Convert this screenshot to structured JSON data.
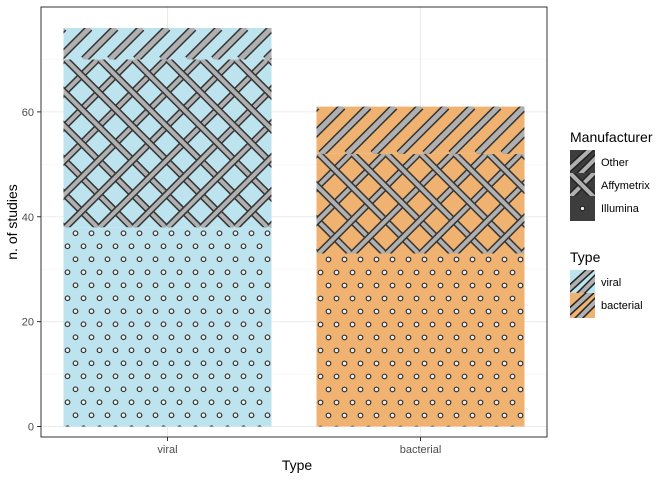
{
  "chart_data": {
    "type": "bar",
    "stacked": true,
    "xlabel": "Type",
    "ylabel": "n. of studies",
    "categories": [
      "viral",
      "bacterial"
    ],
    "series": [
      {
        "name": "Illumina",
        "values": [
          38,
          33
        ],
        "pattern": "dots"
      },
      {
        "name": "Affymetrix",
        "values": [
          32,
          19
        ],
        "pattern": "crosshatch"
      },
      {
        "name": "Other",
        "values": [
          6,
          9
        ],
        "pattern": "stripes"
      }
    ],
    "ylim": [
      -2,
      80
    ],
    "yticks": [
      0,
      20,
      40,
      60
    ],
    "grid": true,
    "legend_position": "right",
    "legends": [
      {
        "title": "Manufacturer",
        "entries": [
          "Other",
          "Affymetrix",
          "Illumina"
        ]
      },
      {
        "title": "Type",
        "entries": [
          "viral",
          "bacterial"
        ]
      }
    ],
    "colors": {
      "viral": "#bce3ee",
      "bacterial": "#efb270"
    }
  }
}
